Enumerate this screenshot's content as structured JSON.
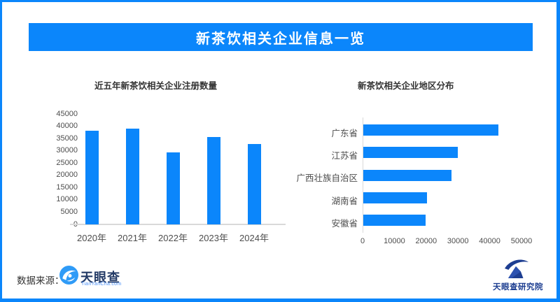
{
  "banner": {
    "title": "新茶饮相关企业信息一览"
  },
  "colors": {
    "accent_blue": "#0b86fb",
    "axis_gray": "#d9d9d9",
    "tick_text": "#4d4d4d",
    "title_text": "#333333",
    "brand_navy": "#1d3e91"
  },
  "footer": {
    "source_label": "数据来源：",
    "brand_name": "天眼查",
    "brand_url": "TianYanCha.com",
    "institute_name": "天眼查研究院"
  },
  "chart_data": [
    {
      "type": "bar",
      "orientation": "vertical",
      "title": "近五年新茶饮相关企业注册数量",
      "categories": [
        "2020年",
        "2021年",
        "2022年",
        "2023年",
        "2024年"
      ],
      "values": [
        38200,
        38900,
        29400,
        35700,
        32800
      ],
      "xlabel": "",
      "ylabel": "",
      "ylim": [
        0,
        45000
      ],
      "ytick_step": 5000,
      "bar_color": "#0b86fb",
      "grid": false,
      "legend": "none"
    },
    {
      "type": "bar",
      "orientation": "horizontal",
      "title": "新茶饮相关企业地区分布",
      "categories": [
        "广东省",
        "江苏省",
        "广西壮族自治区",
        "湖南省",
        "安徽省"
      ],
      "values": [
        42600,
        29700,
        27800,
        20000,
        19700
      ],
      "xlabel": "",
      "ylabel": "",
      "xlim": [
        0,
        50000
      ],
      "xtick_step": 10000,
      "bar_color": "#0b86fb",
      "grid": false,
      "legend": "none"
    }
  ]
}
